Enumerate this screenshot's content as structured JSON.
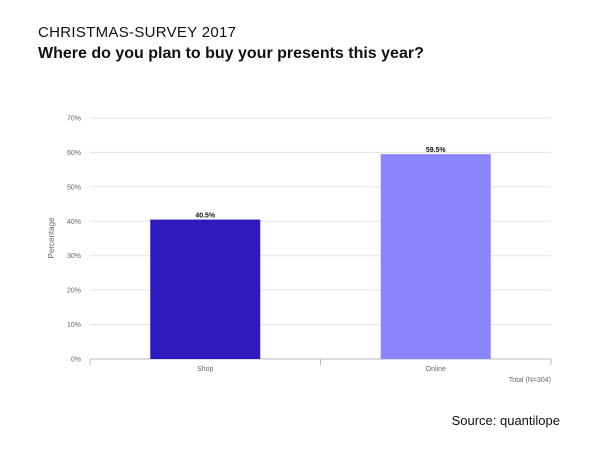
{
  "header": {
    "title": "CHRISTMAS-SURVEY 2017",
    "subtitle": "Where do you plan to buy your presents this year?"
  },
  "chart_data": {
    "type": "bar",
    "categories": [
      "Shop",
      "Online"
    ],
    "values": [
      40.5,
      59.5
    ],
    "value_labels": [
      "40.5%",
      "59.5%"
    ],
    "colors": [
      "#2f1bbd",
      "#8b86ff"
    ],
    "ylabel": "Percentage",
    "ylim": [
      0,
      70
    ],
    "yticks": [
      0,
      10,
      20,
      30,
      40,
      50,
      60,
      70
    ],
    "ytick_labels": [
      "0%",
      "10%",
      "20%",
      "30%",
      "40%",
      "50%",
      "60%",
      "70%"
    ],
    "grid": true,
    "footnote": "Total (N=304)"
  },
  "source": "Source: quantilope"
}
